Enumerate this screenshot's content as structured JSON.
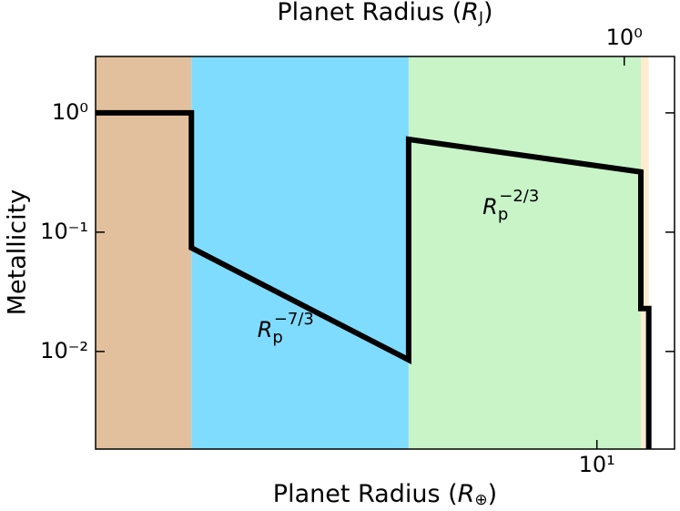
{
  "chart_data": {
    "type": "line",
    "xlabel": {
      "text": "Planet Radius (",
      "symbol": "R",
      "sub": "⊕",
      "close": ")"
    },
    "x2label": {
      "text": "Planet Radius (",
      "symbol": "R",
      "sub": "J",
      "close": ")"
    },
    "ylabel": "Metallicity",
    "xscale": "log",
    "yscale": "log",
    "xlim": [
      1.25,
      13.8
    ],
    "ylim": [
      0.00152,
      2.97
    ],
    "xticks": [
      {
        "value": 10,
        "label": "10¹"
      }
    ],
    "x2lim": [
      0.1116,
      1.232
    ],
    "x2ticks": [
      {
        "value": 1,
        "label": "10⁰"
      }
    ],
    "yticks": [
      {
        "value": 1,
        "label": "10⁰"
      },
      {
        "value": 0.1,
        "label": "10⁻¹"
      },
      {
        "value": 0.01,
        "label": "10⁻²"
      }
    ],
    "regions": [
      {
        "start": 1.25,
        "end": 1.86,
        "color": "#e3c09d"
      },
      {
        "start": 1.86,
        "end": 4.58,
        "color": "#7fdcff"
      },
      {
        "start": 4.58,
        "end": 12.0,
        "color": "#c8f4c8"
      },
      {
        "start": 12.0,
        "end": 12.4,
        "color": "#fdecd0"
      }
    ],
    "series": [
      {
        "color": "#000000",
        "x": [
          1.25,
          1.86,
          1.86,
          4.58,
          4.58,
          12.0,
          12.0,
          12.4,
          12.4
        ],
        "values": [
          1,
          1,
          0.074,
          0.0085,
          0.6,
          0.32,
          0.0229,
          0.0229,
          0.0015
        ]
      }
    ],
    "annotations": [
      {
        "symbol": "R",
        "sub": "p",
        "sup": "−7/3",
        "x": 2.75,
        "y": 0.015
      },
      {
        "symbol": "R",
        "sub": "p",
        "sup": "−2/3",
        "x": 7.0,
        "y": 0.16
      }
    ]
  }
}
